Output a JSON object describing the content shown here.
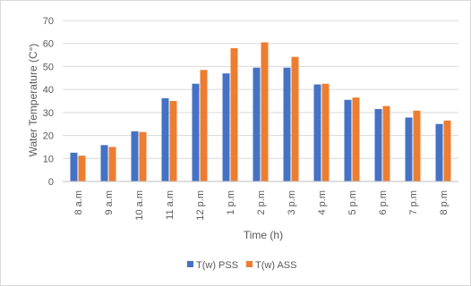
{
  "chart_data": {
    "type": "bar",
    "title": "",
    "xlabel": "Time (h)",
    "ylabel": "Water Temperature (C°)",
    "ylim": [
      0,
      70
    ],
    "yticks": [
      0,
      10,
      20,
      30,
      40,
      50,
      60,
      70
    ],
    "grid": true,
    "legend": "bottom",
    "categories": [
      "8 a.m",
      "9 a.m",
      "10 a.m",
      "11 a.m",
      "12 p.m",
      "1 p.m",
      "2 p.m",
      "3 p.m",
      "4 p.m",
      "5 p.m",
      "6 p.m",
      "7 p.m",
      "8 p.m"
    ],
    "series": [
      {
        "name": "T(w) PSS",
        "color": "#4472c4",
        "values": [
          12.5,
          15.8,
          21.8,
          36.2,
          42.5,
          47.0,
          49.5,
          49.5,
          42.2,
          35.5,
          31.5,
          27.8,
          25.0
        ]
      },
      {
        "name": "T(w) ASS",
        "color": "#ed7d31",
        "values": [
          11.2,
          15.0,
          21.5,
          35.0,
          48.5,
          58.0,
          60.5,
          54.2,
          42.5,
          36.5,
          32.8,
          30.8,
          26.5
        ]
      }
    ]
  }
}
